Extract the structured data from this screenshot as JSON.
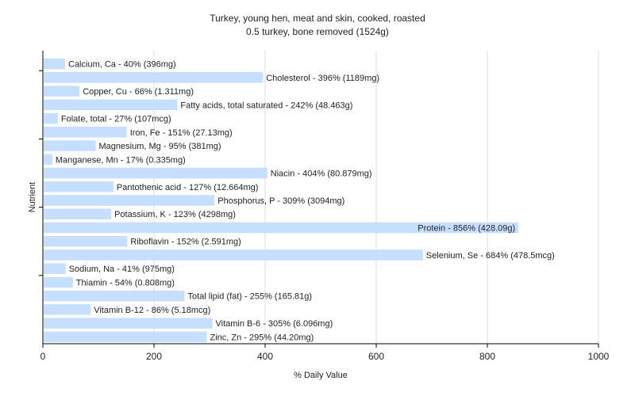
{
  "chart_data": {
    "type": "bar",
    "orientation": "horizontal",
    "title": [
      "Turkey, young hen, meat and skin, cooked, roasted",
      "0.5 turkey, bone removed (1524g)"
    ],
    "xlabel": "% Daily Value",
    "ylabel": "Nutrient",
    "xlim": [
      0,
      1000
    ],
    "xticks": [
      0,
      200,
      400,
      600,
      800,
      1000
    ],
    "grid": true,
    "bar_color": "#c6deff",
    "categories": [
      "Calcium, Ca",
      "Cholesterol",
      "Copper, Cu",
      "Fatty acids, total saturated",
      "Folate, total",
      "Iron, Fe",
      "Magnesium, Mg",
      "Manganese, Mn",
      "Niacin",
      "Pantothenic acid",
      "Phosphorus, P",
      "Potassium, K",
      "Protein",
      "Riboflavin",
      "Selenium, Se",
      "Sodium, Na",
      "Thiamin",
      "Total lipid (fat)",
      "Vitamin B-12",
      "Vitamin B-6",
      "Zinc, Zn"
    ],
    "values": [
      40,
      396,
      66,
      242,
      27,
      151,
      95,
      17,
      404,
      127,
      309,
      123,
      856,
      152,
      684,
      41,
      54,
      255,
      86,
      305,
      295
    ],
    "labels": [
      "Calcium, Ca - 40% (396mg)",
      "Cholesterol - 396% (1189mg)",
      "Copper, Cu - 66% (1.311mg)",
      "Fatty acids, total saturated - 242% (48.463g)",
      "Folate, total - 27% (107mcg)",
      "Iron, Fe - 151% (27.13mg)",
      "Magnesium, Mg - 95% (381mg)",
      "Manganese, Mn - 17% (0.335mg)",
      "Niacin - 404% (80.879mg)",
      "Pantothenic acid - 127% (12.664mg)",
      "Phosphorus, P - 309% (3094mg)",
      "Potassium, K - 123% (4298mg)",
      "Protein - 856% (428.09g)",
      "Riboflavin - 152% (2.591mg)",
      "Selenium, Se - 684% (478.5mcg)",
      "Sodium, Na - 41% (975mg)",
      "Thiamin - 54% (0.808mg)",
      "Total lipid (fat) - 255% (165.81g)",
      "Vitamin B-12 - 86% (5.18mcg)",
      "Vitamin B-6 - 305% (6.096mg)",
      "Zinc, Zn - 295% (44.20mg)"
    ]
  }
}
